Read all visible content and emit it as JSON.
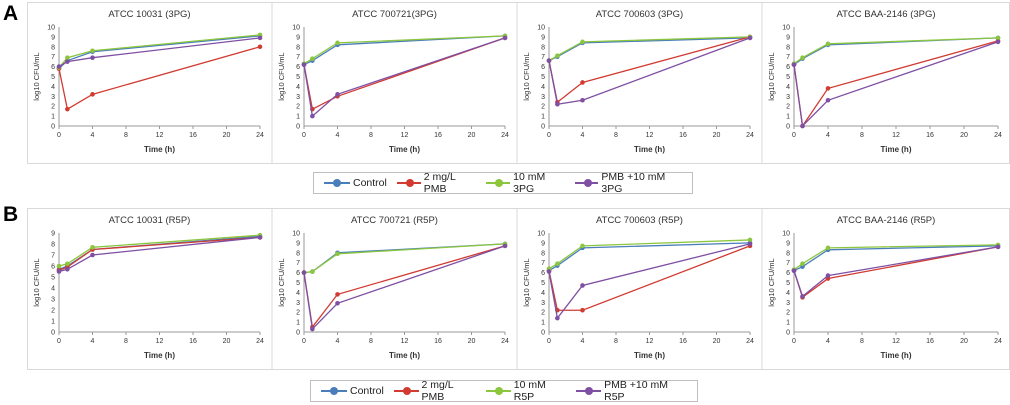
{
  "panel_labels": [
    "A",
    "B"
  ],
  "colors": {
    "control": "#4a7ebb",
    "pmb": "#d13b32",
    "metabolite": "#8cc63e",
    "combo": "#7e4fa3"
  },
  "legend_a": [
    "Control",
    "2 mg/L PMB",
    "10 mM 3PG",
    "PMB +10 mM 3PG"
  ],
  "legend_b": [
    "Control",
    "2 mg/L PMB",
    "10 mM R5P",
    "PMB +10 mM R5P"
  ],
  "chart_data": [
    {
      "type": "line",
      "title": "ATCC 10031 (3PG)",
      "xlabel": "Time (h)",
      "ylabel": "log10 CFU/mL",
      "ylim": [
        0,
        10
      ],
      "yticks": [
        "0",
        "1",
        "2",
        "3",
        "4",
        "5",
        "6",
        "7",
        "8",
        "9",
        "10"
      ],
      "xlim": [
        0,
        24
      ],
      "xticks": [
        "0",
        "4",
        "8",
        "12",
        "16",
        "20",
        "24"
      ],
      "x": [
        0,
        1,
        4,
        24
      ],
      "series": [
        {
          "name": "Control",
          "values": [
            5.8,
            6.6,
            7.5,
            9.1
          ]
        },
        {
          "name": "2 mg/L PMB",
          "values": [
            5.8,
            1.7,
            3.2,
            8.0
          ]
        },
        {
          "name": "10 mM 3PG",
          "values": [
            5.9,
            6.9,
            7.6,
            9.2
          ]
        },
        {
          "name": "PMB +10 mM 3PG",
          "values": [
            6.0,
            6.5,
            6.9,
            8.9
          ]
        }
      ]
    },
    {
      "type": "line",
      "title": "ATCC 700721(3PG)",
      "xlabel": "Time (h)",
      "ylabel": "log10 CFU/mL",
      "ylim": [
        0,
        10
      ],
      "yticks": [
        "0",
        "1",
        "2",
        "3",
        "4",
        "5",
        "6",
        "7",
        "8",
        "9",
        "10"
      ],
      "xlim": [
        0,
        24
      ],
      "xticks": [
        "0",
        "4",
        "8",
        "12",
        "16",
        "20",
        "24"
      ],
      "x": [
        0,
        1,
        4,
        24
      ],
      "series": [
        {
          "name": "Control",
          "values": [
            6.2,
            6.6,
            8.2,
            9.1
          ]
        },
        {
          "name": "2 mg/L PMB",
          "values": [
            6.2,
            1.7,
            3.0,
            8.9
          ]
        },
        {
          "name": "10 mM 3PG",
          "values": [
            6.3,
            6.8,
            8.4,
            9.1
          ]
        },
        {
          "name": "PMB +10 mM 3PG",
          "values": [
            6.2,
            1.0,
            3.2,
            8.9
          ]
        }
      ]
    },
    {
      "type": "line",
      "title": "ATCC 700603 (3PG)",
      "xlabel": "Time (h)",
      "ylabel": "log10 CFU/mL",
      "ylim": [
        0,
        10
      ],
      "yticks": [
        "0",
        "1",
        "2",
        "3",
        "4",
        "5",
        "6",
        "7",
        "8",
        "9",
        "10"
      ],
      "xlim": [
        0,
        24
      ],
      "xticks": [
        "0",
        "4",
        "8",
        "12",
        "16",
        "20",
        "24"
      ],
      "x": [
        0,
        1,
        4,
        24
      ],
      "series": [
        {
          "name": "Control",
          "values": [
            6.6,
            7.0,
            8.4,
            8.9
          ]
        },
        {
          "name": "2 mg/L PMB",
          "values": [
            6.6,
            2.4,
            4.4,
            9.0
          ]
        },
        {
          "name": "10 mM 3PG",
          "values": [
            6.6,
            7.1,
            8.5,
            9.0
          ]
        },
        {
          "name": "PMB +10 mM 3PG",
          "values": [
            6.6,
            2.2,
            2.6,
            8.9
          ]
        }
      ]
    },
    {
      "type": "line",
      "title": "ATCC BAA-2146 (3PG)",
      "xlabel": "Time (h)",
      "ylabel": "log10 CFU/mL",
      "ylim": [
        0,
        10
      ],
      "yticks": [
        "0",
        "1",
        "2",
        "3",
        "4",
        "5",
        "6",
        "7",
        "8",
        "9",
        "10"
      ],
      "xlim": [
        0,
        24
      ],
      "xticks": [
        "0",
        "4",
        "8",
        "12",
        "16",
        "20",
        "24"
      ],
      "x": [
        0,
        1,
        4,
        24
      ],
      "series": [
        {
          "name": "Control",
          "values": [
            6.2,
            6.8,
            8.2,
            8.9
          ]
        },
        {
          "name": "2 mg/L PMB",
          "values": [
            6.2,
            0.0,
            3.8,
            8.6
          ]
        },
        {
          "name": "10 mM 3PG",
          "values": [
            6.3,
            6.9,
            8.3,
            8.9
          ]
        },
        {
          "name": "PMB +10 mM 3PG",
          "values": [
            6.2,
            0.0,
            2.6,
            8.5
          ]
        }
      ]
    },
    {
      "type": "line",
      "title": "ATCC 10031 (R5P)",
      "xlabel": "Time (h)",
      "ylabel": "log10 CFU/mL",
      "ylim": [
        0,
        9
      ],
      "yticks": [
        "0",
        "1",
        "2",
        "3",
        "4",
        "5",
        "6",
        "7",
        "8",
        "9"
      ],
      "xlim": [
        0,
        24
      ],
      "xticks": [
        "0",
        "4",
        "8",
        "12",
        "16",
        "20",
        "24"
      ],
      "x": [
        0,
        1,
        4,
        24
      ],
      "series": [
        {
          "name": "Control",
          "values": [
            5.7,
            6.0,
            7.5,
            8.7
          ]
        },
        {
          "name": "2 mg/L PMB",
          "values": [
            5.6,
            5.9,
            7.5,
            8.6
          ]
        },
        {
          "name": "10 mM R5P",
          "values": [
            6.0,
            6.2,
            7.7,
            8.8
          ]
        },
        {
          "name": "PMB +10 mM R5P",
          "values": [
            5.5,
            5.7,
            7.0,
            8.6
          ]
        }
      ]
    },
    {
      "type": "line",
      "title": "ATCC 700721 (R5P)",
      "xlabel": "Time (h)",
      "ylabel": "log10 CFU/mL",
      "ylim": [
        0,
        10
      ],
      "yticks": [
        "0",
        "1",
        "2",
        "3",
        "4",
        "5",
        "6",
        "7",
        "8",
        "9",
        "10"
      ],
      "xlim": [
        0,
        24
      ],
      "xticks": [
        "0",
        "4",
        "8",
        "12",
        "16",
        "20",
        "24"
      ],
      "x": [
        0,
        1,
        4,
        24
      ],
      "series": [
        {
          "name": "Control",
          "values": [
            6.0,
            6.1,
            8.0,
            8.9
          ]
        },
        {
          "name": "2 mg/L PMB",
          "values": [
            6.0,
            0.5,
            3.8,
            8.7
          ]
        },
        {
          "name": "10 mM R5P",
          "values": [
            6.0,
            6.1,
            7.9,
            8.9
          ]
        },
        {
          "name": "PMB +10 mM R5P",
          "values": [
            6.0,
            0.3,
            2.9,
            8.7
          ]
        }
      ]
    },
    {
      "type": "line",
      "title": "ATCC 700603 (R5P)",
      "xlabel": "Time (h)",
      "ylabel": "log10 CFU/mL",
      "ylim": [
        0,
        10
      ],
      "yticks": [
        "0",
        "1",
        "2",
        "3",
        "4",
        "5",
        "6",
        "7",
        "8",
        "9",
        "10"
      ],
      "xlim": [
        0,
        24
      ],
      "xticks": [
        "0",
        "4",
        "8",
        "12",
        "16",
        "20",
        "24"
      ],
      "x": [
        0,
        1,
        4,
        24
      ],
      "series": [
        {
          "name": "Control",
          "values": [
            6.2,
            6.7,
            8.5,
            9.0
          ]
        },
        {
          "name": "2 mg/L PMB",
          "values": [
            6.2,
            2.2,
            2.2,
            8.7
          ]
        },
        {
          "name": "10 mM R5P",
          "values": [
            6.4,
            6.9,
            8.7,
            9.3
          ]
        },
        {
          "name": "PMB +10 mM R5P",
          "values": [
            6.1,
            1.4,
            4.7,
            8.9
          ]
        }
      ]
    },
    {
      "type": "line",
      "title": "ATCC BAA-2146 (R5P)",
      "xlabel": "Time (h)",
      "ylabel": "log10 CFU/mL",
      "ylim": [
        0,
        10
      ],
      "yticks": [
        "0",
        "1",
        "2",
        "3",
        "4",
        "5",
        "6",
        "7",
        "8",
        "9",
        "10"
      ],
      "xlim": [
        0,
        24
      ],
      "xticks": [
        "0",
        "4",
        "8",
        "12",
        "16",
        "20",
        "24"
      ],
      "x": [
        0,
        1,
        4,
        24
      ],
      "series": [
        {
          "name": "Control",
          "values": [
            6.2,
            6.6,
            8.3,
            8.7
          ]
        },
        {
          "name": "2 mg/L PMB",
          "values": [
            6.2,
            3.5,
            5.4,
            8.6
          ]
        },
        {
          "name": "10 mM R5P",
          "values": [
            6.3,
            6.9,
            8.5,
            8.8
          ]
        },
        {
          "name": "PMB +10 mM R5P",
          "values": [
            6.2,
            3.6,
            5.7,
            8.6
          ]
        }
      ]
    }
  ]
}
